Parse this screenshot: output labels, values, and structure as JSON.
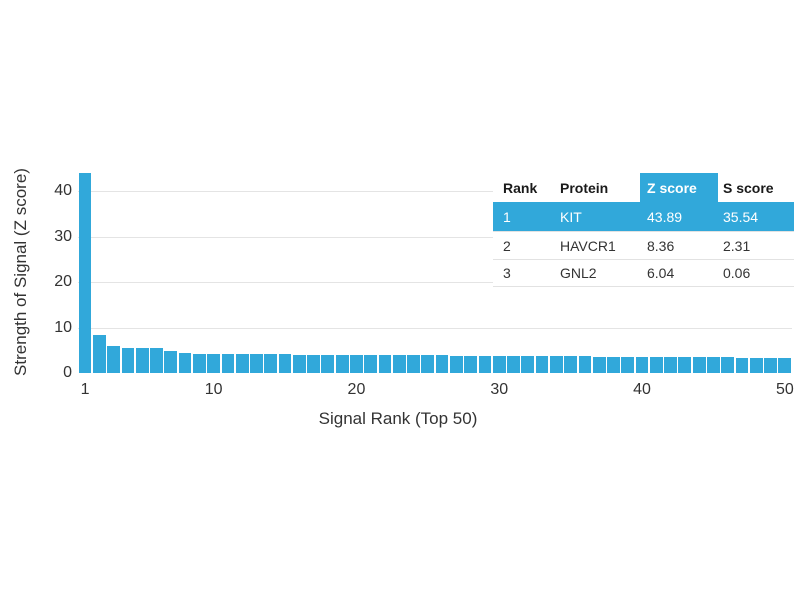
{
  "figure": {
    "background": "#ffffff",
    "accent_blue": "#31a8da",
    "gridline_color": "#e4e4e4",
    "text_color": "#333333"
  },
  "chart_data": {
    "type": "bar",
    "title": "",
    "xlabel": "Signal Rank (Top 50)",
    "ylabel": "Strength of Signal (Z score)",
    "bar_color": "#31a8da",
    "grid": "horizontal-only",
    "legend": "none",
    "ylim": [
      0,
      44
    ],
    "yticks": [
      0,
      10,
      20,
      30,
      40
    ],
    "xticks": [
      1,
      10,
      20,
      30,
      40,
      50
    ],
    "x": [
      1,
      2,
      3,
      4,
      5,
      6,
      7,
      8,
      9,
      10,
      11,
      12,
      13,
      14,
      15,
      16,
      17,
      18,
      19,
      20,
      21,
      22,
      23,
      24,
      25,
      26,
      27,
      28,
      29,
      30,
      31,
      32,
      33,
      34,
      35,
      36,
      37,
      38,
      39,
      40,
      41,
      42,
      43,
      44,
      45,
      46,
      47,
      48,
      49,
      50
    ],
    "values": [
      43.89,
      8.36,
      6.04,
      5.6,
      5.55,
      5.5,
      4.9,
      4.3,
      4.25,
      4.25,
      4.2,
      4.2,
      4.15,
      4.1,
      4.1,
      4.05,
      4.0,
      4.0,
      4.0,
      3.95,
      3.95,
      3.9,
      3.9,
      3.9,
      3.85,
      3.85,
      3.8,
      3.8,
      3.8,
      3.75,
      3.75,
      3.7,
      3.7,
      3.7,
      3.65,
      3.65,
      3.6,
      3.6,
      3.6,
      3.55,
      3.55,
      3.5,
      3.5,
      3.5,
      3.45,
      3.45,
      3.4,
      3.4,
      3.4,
      3.4
    ]
  },
  "inset_table": {
    "columns": [
      "Rank",
      "Protein",
      "Z score",
      "S score"
    ],
    "highlight_column": "Z score",
    "highlight_color": "#31a8da",
    "rows": [
      {
        "rank": "1",
        "protein": "KIT",
        "z_score": "43.89",
        "s_score": "35.54",
        "highlighted": true
      },
      {
        "rank": "2",
        "protein": "HAVCR1",
        "z_score": "8.36",
        "s_score": "2.31",
        "highlighted": false
      },
      {
        "rank": "3",
        "protein": "GNL2",
        "z_score": "6.04",
        "s_score": "0.06",
        "highlighted": false
      }
    ]
  }
}
